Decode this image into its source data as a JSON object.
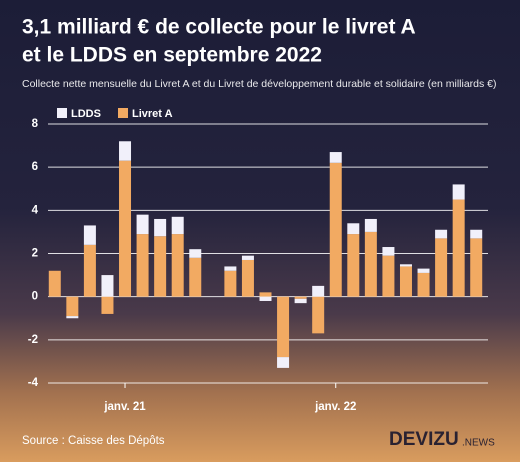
{
  "chart_data": {
    "type": "stacked_bar",
    "title": [
      "3,1 milliard € de collecte pour le livret A",
      "et le LDDS en septembre 2022"
    ],
    "subtitle": "Collecte nette mensuelle du Livret A et du Livret de développement durable et solidaire (en milliards €)",
    "categories": [
      null,
      null,
      null,
      null,
      "janv. 21",
      null,
      null,
      null,
      null,
      null,
      null,
      null,
      null,
      null,
      null,
      null,
      "janv. 22",
      null,
      null,
      null,
      null,
      null,
      null,
      null,
      null
    ],
    "series": [
      {
        "name": "LDDS",
        "color": "#f1f0fa",
        "values": [
          0.0,
          -0.1,
          0.9,
          1.0,
          0.9,
          0.9,
          0.8,
          0.8,
          0.4,
          0.0,
          0.2,
          0.2,
          -0.2,
          -0.5,
          -0.2,
          0.5,
          0.5,
          0.5,
          0.6,
          0.4,
          0.1,
          0.2,
          0.4,
          0.7,
          0.4
        ]
      },
      {
        "name": "Livret A",
        "color": "#f2aa62",
        "values": [
          1.2,
          -0.9,
          2.4,
          -0.8,
          6.3,
          2.9,
          2.8,
          2.9,
          1.8,
          0.0,
          1.2,
          1.7,
          0.2,
          -2.8,
          -0.1,
          -1.7,
          6.2,
          2.9,
          3.0,
          1.9,
          1.4,
          1.1,
          2.7,
          4.5,
          2.7
        ]
      }
    ],
    "ylim": [
      -4,
      8
    ],
    "yticks": [
      -4,
      -2,
      0,
      2,
      4,
      6,
      8
    ],
    "grid": true,
    "legend": "top-left",
    "source": "Source : Caisse des Dépôts",
    "logo": "DEVIZU",
    "logo_suffix": ".NEWS"
  }
}
